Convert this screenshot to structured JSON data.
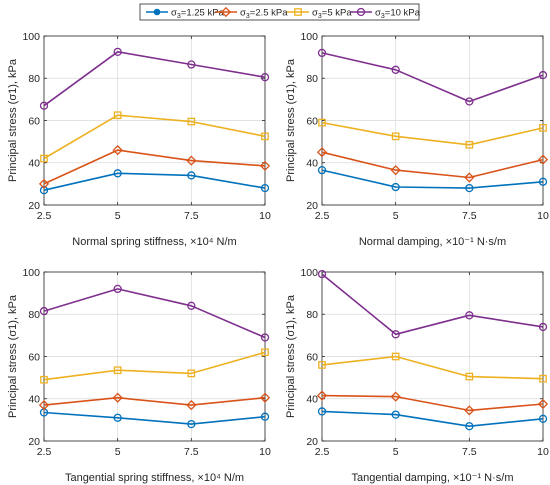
{
  "legend": {
    "items": [
      {
        "label": "σ3=1.25 kPa",
        "base": "σ",
        "sub": "3",
        "rest": "=1.25 kPa",
        "color": "#0072BD",
        "marker": "circle"
      },
      {
        "label": "σ3=2.5 kPa",
        "base": "σ",
        "sub": "3",
        "rest": "=2.5 kPa",
        "color": "#D95319",
        "marker": "diamond"
      },
      {
        "label": "σ3=5 kPa",
        "base": "σ",
        "sub": "3",
        "rest": "=5 kPa",
        "color": "#EDB120",
        "marker": "square"
      },
      {
        "label": "σ3=10 kPa",
        "base": "σ",
        "sub": "3",
        "rest": "=10 kPa",
        "color": "#7E2F8E",
        "marker": "circle"
      }
    ]
  },
  "chart_data": [
    {
      "type": "line",
      "x": [
        2.5,
        5,
        7.5,
        10
      ],
      "xticks": [
        "2.5",
        "5",
        "7.5",
        "10"
      ],
      "xlim": [
        2.5,
        10
      ],
      "ylim": [
        20,
        100
      ],
      "yticks": [
        "20",
        "40",
        "60",
        "80",
        "100"
      ],
      "grid": true,
      "ylabel": "Principal stress (σ1), kPa",
      "xlabel": "Normal spring stiffness, ×10⁴ N/m",
      "series": [
        {
          "name": "σ3=1.25 kPa",
          "values": [
            27,
            35,
            34,
            28
          ]
        },
        {
          "name": "σ3=2.5 kPa",
          "values": [
            30,
            46,
            41,
            38.5
          ]
        },
        {
          "name": "σ3=5 kPa",
          "values": [
            42,
            62.5,
            59.5,
            52.5
          ]
        },
        {
          "name": "σ3=10 kPa",
          "values": [
            67,
            92.5,
            86.5,
            80.5
          ]
        }
      ]
    },
    {
      "type": "line",
      "x": [
        2.5,
        5,
        7.5,
        10
      ],
      "xticks": [
        "2.5",
        "5",
        "7.5",
        "10"
      ],
      "xlim": [
        2.5,
        10
      ],
      "ylim": [
        20,
        100
      ],
      "yticks": [
        "20",
        "40",
        "60",
        "80",
        "100"
      ],
      "grid": true,
      "ylabel": "Principal stress (σ1), kPa",
      "xlabel": "Normal damping, ×10⁻¹ N·s/m",
      "series": [
        {
          "name": "σ3=1.25 kPa",
          "values": [
            36.5,
            28.5,
            28,
            31
          ]
        },
        {
          "name": "σ3=2.5 kPa",
          "values": [
            45,
            36.5,
            33,
            41.5
          ]
        },
        {
          "name": "σ3=5 kPa",
          "values": [
            59,
            52.5,
            48.5,
            56.5
          ]
        },
        {
          "name": "σ3=10 kPa",
          "values": [
            92,
            84,
            69,
            81.5
          ]
        }
      ]
    },
    {
      "type": "line",
      "x": [
        2.5,
        5,
        7.5,
        10
      ],
      "xticks": [
        "2.5",
        "5",
        "7.5",
        "10"
      ],
      "xlim": [
        2.5,
        10
      ],
      "ylim": [
        20,
        100
      ],
      "yticks": [
        "20",
        "40",
        "60",
        "80",
        "100"
      ],
      "grid": true,
      "ylabel": "Principal stress (σ1), kPa",
      "xlabel": "Tangential spring stiffness, ×10⁴ N/m",
      "series": [
        {
          "name": "σ3=1.25 kPa",
          "values": [
            33.5,
            31,
            28,
            31.5
          ]
        },
        {
          "name": "σ3=2.5 kPa",
          "values": [
            37,
            40.5,
            37,
            40.5
          ]
        },
        {
          "name": "σ3=5 kPa",
          "values": [
            49,
            53.5,
            52,
            62
          ]
        },
        {
          "name": "σ3=10 kPa",
          "values": [
            81.5,
            92,
            84,
            69
          ]
        }
      ]
    },
    {
      "type": "line",
      "x": [
        2.5,
        5,
        7.5,
        10
      ],
      "xticks": [
        "2.5",
        "5",
        "7.5",
        "10"
      ],
      "xlim": [
        2.5,
        10
      ],
      "ylim": [
        20,
        100
      ],
      "yticks": [
        "20",
        "40",
        "60",
        "80",
        "100"
      ],
      "grid": true,
      "ylabel": "Principal stress (σ1), kPa",
      "xlabel": "Tangential damping, ×10⁻¹ N·s/m",
      "series": [
        {
          "name": "σ3=1.25 kPa",
          "values": [
            34,
            32.5,
            27,
            30.5
          ]
        },
        {
          "name": "σ3=2.5 kPa",
          "values": [
            41.5,
            41,
            34.5,
            37.5
          ]
        },
        {
          "name": "σ3=5 kPa",
          "values": [
            56,
            60,
            50.5,
            49.5
          ]
        },
        {
          "name": "σ3=10 kPa",
          "values": [
            99,
            70.5,
            79.5,
            74
          ]
        }
      ]
    }
  ]
}
